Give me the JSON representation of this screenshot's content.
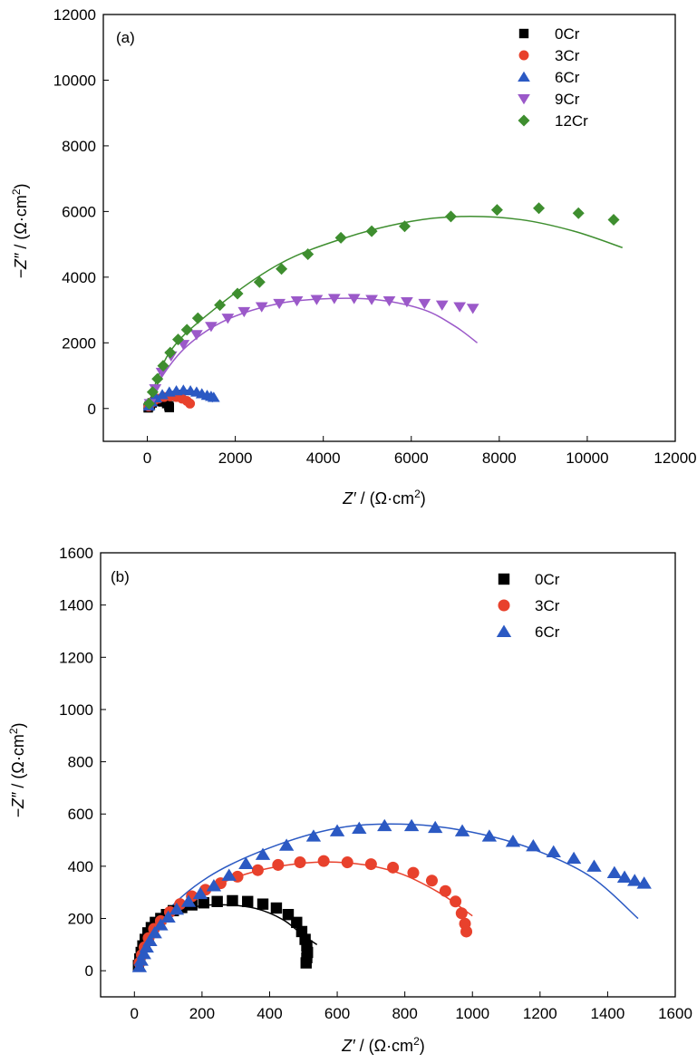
{
  "chart_data": [
    {
      "type": "scatter",
      "panel_label": "(a)",
      "xlabel_main": "Z′",
      "xlabel_unit": " / (Ω·cm",
      "xlabel_sup": "2",
      "xlabel_close": ")",
      "ylabel_main": "−Z″",
      "ylabel_unit": " / (Ω·cm",
      "ylabel_sup": "2",
      "ylabel_close": ")",
      "xlim": [
        -1000,
        12000
      ],
      "ylim": [
        -1000,
        12000
      ],
      "x_ticks": [
        0,
        2000,
        4000,
        6000,
        8000,
        10000,
        12000
      ],
      "x_tick_labels": [
        "0",
        "2000",
        "4000",
        "6000",
        "8000",
        "10000",
        "12000"
      ],
      "y_ticks": [
        0,
        2000,
        4000,
        6000,
        8000,
        10000,
        12000
      ],
      "y_tick_labels": [
        "0",
        "2000",
        "4000",
        "6000",
        "8000",
        "10000",
        "12000"
      ],
      "grid": false,
      "legend_position": "top-right",
      "series": [
        {
          "name": "0Cr",
          "color": "#000000",
          "marker": "square",
          "points": [
            [
              20,
              20
            ],
            [
              40,
              70
            ],
            [
              70,
              120
            ],
            [
              110,
              170
            ],
            [
              170,
              210
            ],
            [
              260,
              230
            ],
            [
              360,
              200
            ],
            [
              440,
              150
            ],
            [
              490,
              80
            ],
            [
              500,
              30
            ]
          ],
          "fit": [
            [
              10,
              0
            ],
            [
              80,
              130
            ],
            [
              200,
              210
            ],
            [
              320,
              230
            ],
            [
              420,
              180
            ],
            [
              500,
              60
            ]
          ]
        },
        {
          "name": "3Cr",
          "color": "#e8412c",
          "marker": "circle",
          "points": [
            [
              30,
              60
            ],
            [
              80,
              150
            ],
            [
              150,
              230
            ],
            [
              250,
              300
            ],
            [
              380,
              350
            ],
            [
              520,
              370
            ],
            [
              660,
              350
            ],
            [
              790,
              300
            ],
            [
              900,
              230
            ],
            [
              970,
              150
            ]
          ],
          "fit": [
            [
              10,
              0
            ],
            [
              100,
              180
            ],
            [
              250,
              300
            ],
            [
              450,
              370
            ],
            [
              650,
              360
            ],
            [
              850,
              280
            ],
            [
              1000,
              200
            ]
          ]
        },
        {
          "name": "6Cr",
          "color": "#2b59c3",
          "marker": "triangle-up",
          "points": [
            [
              40,
              80
            ],
            [
              100,
              200
            ],
            [
              200,
              320
            ],
            [
              340,
              420
            ],
            [
              500,
              500
            ],
            [
              660,
              540
            ],
            [
              820,
              560
            ],
            [
              980,
              540
            ],
            [
              1120,
              500
            ],
            [
              1240,
              450
            ],
            [
              1360,
              400
            ],
            [
              1450,
              370
            ],
            [
              1510,
              340
            ]
          ],
          "fit": [
            [
              10,
              0
            ],
            [
              150,
              250
            ],
            [
              400,
              450
            ],
            [
              700,
              550
            ],
            [
              1000,
              540
            ],
            [
              1250,
              420
            ],
            [
              1490,
              200
            ]
          ]
        },
        {
          "name": "9Cr",
          "color": "#9b59c9",
          "marker": "triangle-down",
          "points": [
            [
              60,
              150
            ],
            [
              180,
              600
            ],
            [
              330,
              1100
            ],
            [
              540,
              1600
            ],
            [
              820,
              1950
            ],
            [
              1120,
              2250
            ],
            [
              1450,
              2500
            ],
            [
              1830,
              2750
            ],
            [
              2200,
              2950
            ],
            [
              2600,
              3100
            ],
            [
              3000,
              3200
            ],
            [
              3400,
              3280
            ],
            [
              3850,
              3320
            ],
            [
              4250,
              3350
            ],
            [
              4700,
              3350
            ],
            [
              5100,
              3320
            ],
            [
              5500,
              3280
            ],
            [
              5900,
              3250
            ],
            [
              6300,
              3200
            ],
            [
              6700,
              3150
            ],
            [
              7100,
              3100
            ],
            [
              7400,
              3050
            ]
          ],
          "fit": [
            [
              0,
              0
            ],
            [
              300,
              900
            ],
            [
              900,
              1900
            ],
            [
              1800,
              2700
            ],
            [
              3000,
              3200
            ],
            [
              4200,
              3350
            ],
            [
              5300,
              3300
            ],
            [
              6300,
              3000
            ],
            [
              7000,
              2500
            ],
            [
              7500,
              2000
            ]
          ]
        },
        {
          "name": "12Cr",
          "color": "#3e8e2f",
          "marker": "diamond",
          "points": [
            [
              40,
              150
            ],
            [
              120,
              500
            ],
            [
              230,
              900
            ],
            [
              360,
              1300
            ],
            [
              520,
              1700
            ],
            [
              700,
              2100
            ],
            [
              900,
              2400
            ],
            [
              1150,
              2750
            ],
            [
              1650,
              3150
            ],
            [
              2050,
              3500
            ],
            [
              2550,
              3850
            ],
            [
              3050,
              4250
            ],
            [
              3650,
              4700
            ],
            [
              4400,
              5200
            ],
            [
              5100,
              5400
            ],
            [
              5850,
              5550
            ],
            [
              6900,
              5850
            ],
            [
              7950,
              6050
            ],
            [
              8900,
              6100
            ],
            [
              9800,
              5950
            ],
            [
              10600,
              5750
            ]
          ],
          "fit": [
            [
              0,
              0
            ],
            [
              500,
              1700
            ],
            [
              1500,
              3000
            ],
            [
              3000,
              4400
            ],
            [
              4500,
              5200
            ],
            [
              6000,
              5700
            ],
            [
              7200,
              5850
            ],
            [
              8500,
              5750
            ],
            [
              9700,
              5400
            ],
            [
              10800,
              4900
            ]
          ]
        }
      ]
    },
    {
      "type": "scatter",
      "panel_label": "(b)",
      "xlabel_main": "Z′",
      "xlabel_unit": " / (Ω·cm",
      "xlabel_sup": "2",
      "xlabel_close": ")",
      "ylabel_main": "−Z″",
      "ylabel_unit": " / (Ω·cm",
      "ylabel_sup": "2",
      "ylabel_close": ")",
      "xlim": [
        -100,
        1600
      ],
      "ylim": [
        -100,
        1600
      ],
      "x_ticks": [
        0,
        200,
        400,
        600,
        800,
        1000,
        1200,
        1400,
        1600
      ],
      "x_tick_labels": [
        "0",
        "200",
        "400",
        "600",
        "800",
        "1000",
        "1200",
        "1400",
        "1600"
      ],
      "y_ticks": [
        0,
        200,
        400,
        600,
        800,
        1000,
        1200,
        1400,
        1600
      ],
      "y_tick_labels": [
        "0",
        "200",
        "400",
        "600",
        "800",
        "1000",
        "1200",
        "1400",
        "1600"
      ],
      "grid": false,
      "legend_position": "top-right",
      "series": [
        {
          "name": "0Cr",
          "color": "#000000",
          "marker": "square",
          "points": [
            [
              12,
              20
            ],
            [
              16,
              45
            ],
            [
              20,
              70
            ],
            [
              25,
              95
            ],
            [
              32,
              120
            ],
            [
              40,
              145
            ],
            [
              50,
              165
            ],
            [
              62,
              185
            ],
            [
              78,
              200
            ],
            [
              95,
              215
            ],
            [
              115,
              230
            ],
            [
              140,
              242
            ],
            [
              170,
              252
            ],
            [
              205,
              260
            ],
            [
              245,
              265
            ],
            [
              290,
              268
            ],
            [
              335,
              265
            ],
            [
              380,
              255
            ],
            [
              420,
              240
            ],
            [
              455,
              215
            ],
            [
              480,
              185
            ],
            [
              495,
              150
            ],
            [
              505,
              120
            ],
            [
              510,
              95
            ],
            [
              512,
              70
            ],
            [
              510,
              50
            ],
            [
              508,
              30
            ]
          ],
          "fit": [
            [
              8,
              0
            ],
            [
              40,
              130
            ],
            [
              100,
              205
            ],
            [
              180,
              245
            ],
            [
              270,
              252
            ],
            [
              360,
              238
            ],
            [
              440,
              195
            ],
            [
              500,
              135
            ],
            [
              540,
              100
            ]
          ]
        },
        {
          "name": "3Cr",
          "color": "#e8412c",
          "marker": "circle",
          "points": [
            [
              15,
              30
            ],
            [
              22,
              60
            ],
            [
              30,
              90
            ],
            [
              42,
              125
            ],
            [
              58,
              160
            ],
            [
              78,
              190
            ],
            [
              105,
              225
            ],
            [
              135,
              255
            ],
            [
              170,
              285
            ],
            [
              210,
              310
            ],
            [
              255,
              335
            ],
            [
              305,
              360
            ],
            [
              365,
              385
            ],
            [
              425,
              405
            ],
            [
              490,
              415
            ],
            [
              560,
              420
            ],
            [
              630,
              415
            ],
            [
              700,
              408
            ],
            [
              765,
              395
            ],
            [
              825,
              375
            ],
            [
              880,
              345
            ],
            [
              920,
              305
            ],
            [
              950,
              265
            ],
            [
              968,
              220
            ],
            [
              978,
              180
            ],
            [
              982,
              150
            ]
          ],
          "fit": [
            [
              8,
              0
            ],
            [
              60,
              165
            ],
            [
              180,
              285
            ],
            [
              330,
              370
            ],
            [
              500,
              412
            ],
            [
              640,
              412
            ],
            [
              780,
              375
            ],
            [
              900,
              300
            ],
            [
              1000,
              210
            ]
          ]
        },
        {
          "name": "6Cr",
          "color": "#2b59c3",
          "marker": "triangle-up",
          "points": [
            [
              15,
              15
            ],
            [
              20,
              40
            ],
            [
              28,
              65
            ],
            [
              36,
              90
            ],
            [
              46,
              115
            ],
            [
              60,
              145
            ],
            [
              78,
              175
            ],
            [
              100,
              205
            ],
            [
              125,
              235
            ],
            [
              160,
              265
            ],
            [
              195,
              295
            ],
            [
              235,
              325
            ],
            [
              280,
              365
            ],
            [
              330,
              410
            ],
            [
              380,
              445
            ],
            [
              450,
              480
            ],
            [
              530,
              515
            ],
            [
              600,
              535
            ],
            [
              665,
              545
            ],
            [
              740,
              555
            ],
            [
              820,
              555
            ],
            [
              890,
              548
            ],
            [
              970,
              535
            ],
            [
              1050,
              515
            ],
            [
              1120,
              495
            ],
            [
              1180,
              478
            ],
            [
              1240,
              455
            ],
            [
              1300,
              430
            ],
            [
              1360,
              400
            ],
            [
              1420,
              375
            ],
            [
              1450,
              358
            ],
            [
              1480,
              345
            ],
            [
              1508,
              335
            ]
          ],
          "fit": [
            [
              8,
              0
            ],
            [
              80,
              200
            ],
            [
              220,
              360
            ],
            [
              420,
              480
            ],
            [
              620,
              550
            ],
            [
              820,
              560
            ],
            [
              1000,
              530
            ],
            [
              1180,
              465
            ],
            [
              1350,
              360
            ],
            [
              1490,
              200
            ]
          ]
        }
      ]
    }
  ]
}
